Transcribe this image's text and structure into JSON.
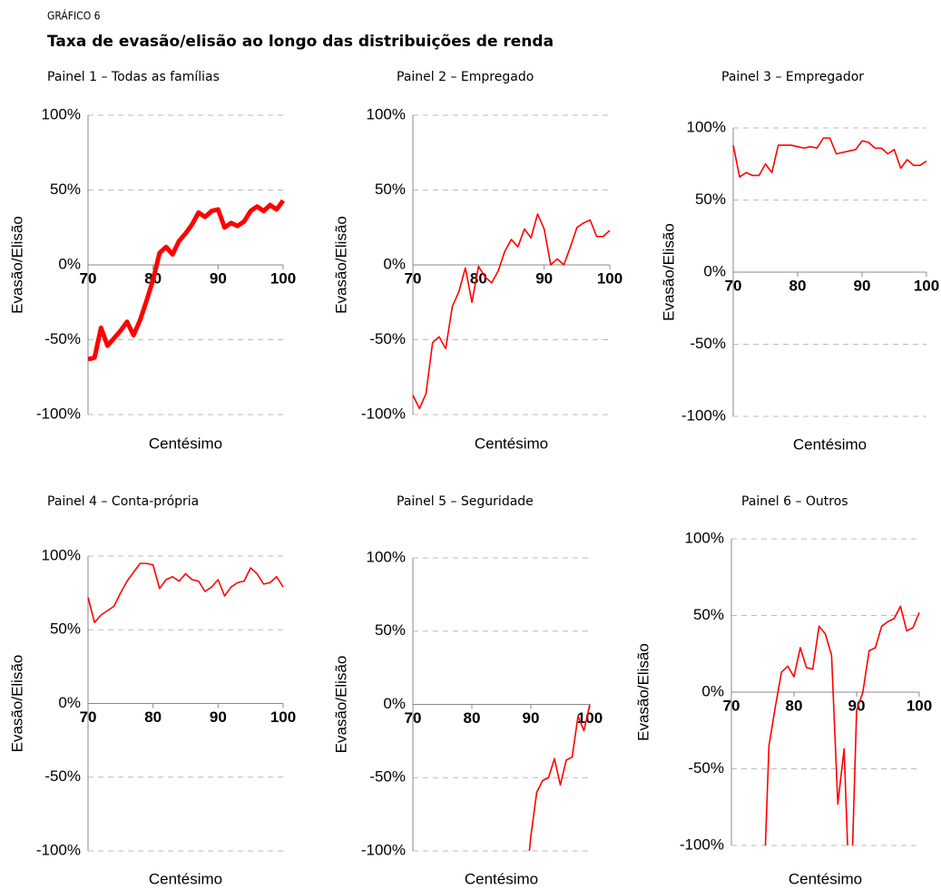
{
  "header": {
    "kicker": "GRÁFICO 6",
    "title": "Taxa de evasão/elisão ao longo das distribuições de renda"
  },
  "chart_data": [
    {
      "type": "line",
      "title": "Painel 1 – Todas as famílias",
      "xlabel": "Centésimo",
      "ylabel": "Evasão/Elisão",
      "color": "#ff0000",
      "grid": true,
      "x": [
        70,
        71,
        72,
        73,
        74,
        75,
        76,
        77,
        78,
        79,
        80,
        81,
        82,
        83,
        84,
        85,
        86,
        87,
        88,
        89,
        90,
        91,
        92,
        93,
        94,
        95,
        96,
        97,
        98,
        99,
        100
      ],
      "values": [
        -63,
        -62,
        -42,
        -54,
        -49,
        -44,
        -38,
        -47,
        -37,
        -24,
        -10,
        8,
        12,
        7,
        16,
        21,
        27,
        35,
        32,
        36,
        37,
        25,
        28,
        26,
        29,
        36,
        39,
        36,
        40,
        37,
        43
      ],
      "xlim": [
        70,
        100
      ],
      "xticks": [
        70,
        80,
        90,
        100
      ],
      "ylim": [
        -100,
        100
      ],
      "yticks": [
        {
          "value": -100,
          "label": "-100%"
        },
        {
          "value": -50,
          "label": "-50%"
        },
        {
          "value": 0,
          "label": "0%"
        },
        {
          "value": 50,
          "label": "50%"
        },
        {
          "value": 100,
          "label": "100%"
        }
      ]
    },
    {
      "type": "line",
      "title": "Painel 2 – Empregado",
      "xlabel": "Centésimo",
      "ylabel": "Evasão/Elisão",
      "color": "#ff0000",
      "grid": true,
      "x": [
        70,
        71,
        72,
        73,
        74,
        75,
        76,
        77,
        78,
        79,
        80,
        81,
        82,
        83,
        84,
        85,
        86,
        87,
        88,
        89,
        90,
        91,
        92,
        93,
        94,
        95,
        96,
        97,
        98,
        99,
        100
      ],
      "values": [
        -87,
        -96,
        -86,
        -52,
        -48,
        -56,
        -28,
        -18,
        -2,
        -25,
        -1,
        -8,
        -12,
        -4,
        9,
        17,
        12,
        24,
        18,
        34,
        24,
        0,
        4,
        0,
        12,
        25,
        28,
        30,
        19,
        19,
        23
      ],
      "xlim": [
        70,
        100
      ],
      "xticks": [
        70,
        80,
        90,
        100
      ],
      "ylim": [
        -100,
        100
      ],
      "yticks": [
        {
          "value": -100,
          "label": "-100%"
        },
        {
          "value": -50,
          "label": "-50%"
        },
        {
          "value": 0,
          "label": "0%"
        },
        {
          "value": 50,
          "label": "50%"
        },
        {
          "value": 100,
          "label": "100%"
        }
      ]
    },
    {
      "type": "line",
      "title": "Painel 3 – Empregador",
      "xlabel": "Centésimo",
      "ylabel": "Evasão/Elisão",
      "color": "#ff0000",
      "grid": true,
      "x": [
        70,
        71,
        72,
        73,
        74,
        75,
        76,
        77,
        78,
        79,
        80,
        81,
        82,
        83,
        84,
        85,
        86,
        87,
        88,
        89,
        90,
        91,
        92,
        93,
        94,
        95,
        96,
        97,
        98,
        99,
        100
      ],
      "values": [
        88,
        66,
        69,
        67,
        67,
        75,
        69,
        88,
        88,
        88,
        87,
        86,
        87,
        86,
        93,
        93,
        82,
        83,
        84,
        85,
        91,
        90,
        86,
        86,
        82,
        85,
        72,
        78,
        74,
        74,
        77
      ],
      "xlim": [
        70,
        100
      ],
      "xticks": [
        70,
        80,
        90,
        100
      ],
      "ylim": [
        -100,
        100
      ],
      "yticks": [
        {
          "value": -100,
          "label": "-100%"
        },
        {
          "value": -50,
          "label": "-50%"
        },
        {
          "value": 0,
          "label": "0%"
        },
        {
          "value": 50,
          "label": "50%"
        },
        {
          "value": 100,
          "label": "100%"
        }
      ]
    },
    {
      "type": "line",
      "title": "Painel 4 – Conta-própria",
      "xlabel": "Centésimo",
      "ylabel": "Evasão/Elisão",
      "color": "#ff0000",
      "grid": true,
      "x": [
        70,
        71,
        72,
        73,
        74,
        75,
        76,
        77,
        78,
        79,
        80,
        81,
        82,
        83,
        84,
        85,
        86,
        87,
        88,
        89,
        90,
        91,
        92,
        93,
        94,
        95,
        96,
        97,
        98,
        99,
        100
      ],
      "values": [
        72,
        55,
        60,
        63,
        66,
        75,
        83,
        89,
        95,
        95,
        94,
        78,
        84,
        86,
        83,
        88,
        84,
        83,
        76,
        79,
        84,
        73,
        79,
        82,
        83,
        92,
        88,
        81,
        82,
        86,
        79
      ],
      "xlim": [
        70,
        100
      ],
      "xticks": [
        70,
        80,
        90,
        100
      ],
      "ylim": [
        -100,
        100
      ],
      "yticks": [
        {
          "value": -100,
          "label": "-100%"
        },
        {
          "value": -50,
          "label": "-50%"
        },
        {
          "value": 0,
          "label": "0%"
        },
        {
          "value": 50,
          "label": "50%"
        },
        {
          "value": 100,
          "label": "100%"
        }
      ]
    },
    {
      "type": "line",
      "title": "Painel 5 – Seguridade",
      "xlabel": "Centésimo",
      "ylabel": "Evasão/Elisão",
      "color": "#ff0000",
      "grid": true,
      "x": [
        70,
        71,
        72,
        73,
        74,
        75,
        76,
        77,
        78,
        79,
        80,
        81,
        82,
        83,
        84,
        85,
        86,
        87,
        88,
        89,
        90,
        91,
        92,
        93,
        94,
        95,
        96,
        97,
        98,
        99,
        100
      ],
      "values": [
        null,
        null,
        null,
        null,
        null,
        null,
        null,
        null,
        null,
        null,
        null,
        null,
        null,
        null,
        null,
        null,
        null,
        null,
        null,
        -130,
        -90,
        -60,
        -52,
        -50,
        -37,
        -55,
        -38,
        -36,
        -8,
        -18,
        0
      ],
      "xlim": [
        70,
        100
      ],
      "xticks": [
        70,
        80,
        90,
        100
      ],
      "ylim": [
        -100,
        100
      ],
      "yticks": [
        {
          "value": -100,
          "label": "-100%"
        },
        {
          "value": -50,
          "label": "-50%"
        },
        {
          "value": 0,
          "label": "0%"
        },
        {
          "value": 50,
          "label": "50%"
        },
        {
          "value": 100,
          "label": "100%"
        }
      ]
    },
    {
      "type": "line",
      "title": "Painel 6 – Outros",
      "xlabel": "Centésimo",
      "ylabel": "Evasão/Elisão",
      "color": "#ff0000",
      "grid": true,
      "x": [
        70,
        71,
        72,
        73,
        74,
        75,
        76,
        77,
        78,
        79,
        80,
        81,
        82,
        83,
        84,
        85,
        86,
        87,
        88,
        89,
        90,
        91,
        92,
        93,
        94,
        95,
        96,
        97,
        98,
        99,
        100
      ],
      "values": [
        null,
        null,
        null,
        null,
        null,
        -150,
        -35,
        -10,
        13,
        17,
        10,
        29,
        16,
        15,
        43,
        38,
        24,
        -73,
        -37,
        -150,
        -12,
        0,
        27,
        29,
        43,
        46,
        48,
        56,
        40,
        42,
        52
      ],
      "xlim": [
        70,
        100
      ],
      "xticks": [
        70,
        80,
        90,
        100
      ],
      "ylim": [
        -100,
        100
      ],
      "yticks": [
        {
          "value": -100,
          "label": "-100%"
        },
        {
          "value": -50,
          "label": "-50%"
        },
        {
          "value": 0,
          "label": "0%"
        },
        {
          "value": 50,
          "label": "50%"
        },
        {
          "value": 100,
          "label": "100%"
        }
      ]
    }
  ]
}
